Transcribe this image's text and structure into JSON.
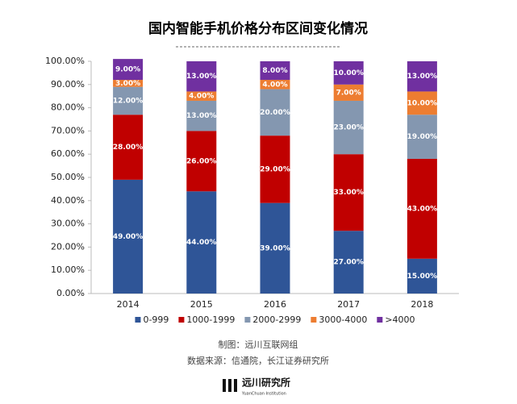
{
  "chart_data": {
    "type": "stacked_bar",
    "title": "国内智能手机价格分布区间变化情况",
    "categories": [
      "2014",
      "2015",
      "2016",
      "2017",
      "2018"
    ],
    "series": [
      {
        "name": "0-999",
        "color": "#2f5597",
        "values": [
          49,
          44,
          39,
          27,
          15
        ],
        "value_labels": [
          "49.00%",
          "44.00%",
          "39.00%",
          "27.00%",
          "15.00%"
        ]
      },
      {
        "name": "1000-1999",
        "color": "#c00000",
        "values": [
          28,
          26,
          29,
          33,
          43
        ],
        "value_labels": [
          "28.00%",
          "26.00%",
          "29.00%",
          "33.00%",
          "43.00%"
        ]
      },
      {
        "name": "2000-2999",
        "color": "#8497b0",
        "values": [
          12,
          13,
          20,
          23,
          19
        ],
        "value_labels": [
          "12.00%",
          "13.00%",
          "20.00%",
          "23.00%",
          "19.00%"
        ]
      },
      {
        "name": "3000-4000",
        "color": "#ed7d31",
        "values": [
          3,
          4,
          4,
          7,
          10
        ],
        "value_labels": [
          "3.00%",
          "4.00%",
          "4.00%",
          "7.00%",
          "10.00%"
        ]
      },
      {
        "name": ">4000",
        "color": "#7030a0",
        "values": [
          9,
          13,
          8,
          10,
          13
        ],
        "value_labels": [
          "9.00%",
          "13.00%",
          "8.00%",
          "10.00%",
          "13.00%"
        ]
      }
    ],
    "ylim": [
      0,
      100
    ],
    "yticks": [
      {
        "value": 0,
        "label": "0.00%"
      },
      {
        "value": 10,
        "label": "10.00%"
      },
      {
        "value": 20,
        "label": "20.00%"
      },
      {
        "value": 30,
        "label": "30.00%"
      },
      {
        "value": 40,
        "label": "40.00%"
      },
      {
        "value": 50,
        "label": "50.00%"
      },
      {
        "value": 60,
        "label": "60.00%"
      },
      {
        "value": 70,
        "label": "70.00%"
      },
      {
        "value": 80,
        "label": "80.00%"
      },
      {
        "value": 90,
        "label": "90.00%"
      },
      {
        "value": 100,
        "label": "100.00%"
      }
    ],
    "grid": false,
    "legend": "bottom"
  },
  "footer": {
    "credit": "制图：远川互联网组",
    "source": "数据来源：信通院，长江证券研究所",
    "logo": "远川研究所",
    "logo_sub": "YuanChuan Institution"
  }
}
